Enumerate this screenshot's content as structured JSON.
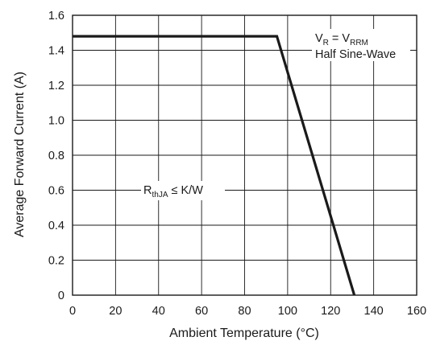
{
  "chart_data": {
    "type": "line",
    "title": "",
    "xlabel": "Ambient Temperature (°C)",
    "ylabel": "Average Forward Current (A)",
    "xlim": [
      0,
      160
    ],
    "ylim": [
      0,
      1.6
    ],
    "x_ticks": [
      "0",
      "20",
      "40",
      "60",
      "80",
      "100",
      "120",
      "140",
      "160"
    ],
    "y_ticks": [
      "0",
      "0.2",
      "0.4",
      "0.6",
      "0.8",
      "1.0",
      "1.2",
      "1.4",
      "1.6"
    ],
    "grid": true,
    "series": [
      {
        "x": [
          0,
          95,
          131
        ],
        "y": [
          1.48,
          1.48,
          0
        ]
      }
    ],
    "annotations": {
      "vr": {
        "v_main": "V",
        "v_sub": "R",
        "equals": " = V",
        "vrrm_sub": "RRM"
      },
      "waveform": "Half Sine-Wave",
      "rth": {
        "r_main": "R",
        "r_sub": "thJA",
        "condition": " ≤ K/W"
      }
    }
  }
}
